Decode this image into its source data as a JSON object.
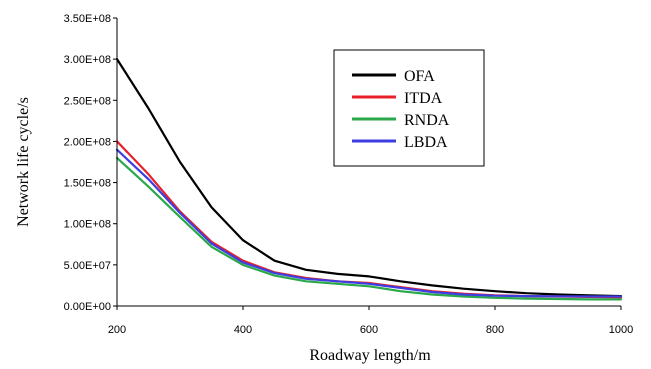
{
  "chart_data": {
    "type": "line",
    "title": "",
    "xlabel": "Roadway length/m",
    "ylabel": "Network life cycle/s",
    "xlim": [
      200,
      1000
    ],
    "ylim": [
      0,
      350000000
    ],
    "x_ticks": [
      200,
      400,
      600,
      800,
      1000
    ],
    "x_tick_labels": [
      "200",
      "400",
      "600",
      "800",
      "1000"
    ],
    "y_ticks": [
      0,
      50000000,
      100000000,
      150000000,
      200000000,
      250000000,
      300000000,
      350000000
    ],
    "y_tick_labels": [
      "0.00E+00",
      "5.00E+07",
      "1.00E+08",
      "1.50E+08",
      "2.00E+08",
      "2.50E+08",
      "3.00E+08",
      "3.50E+08"
    ],
    "grid": false,
    "legend_position": "top-right",
    "series": [
      {
        "name": "OFA",
        "color": "#000000",
        "x": [
          200,
          250,
          300,
          350,
          400,
          450,
          500,
          550,
          600,
          650,
          700,
          750,
          800,
          850,
          900,
          950,
          1000
        ],
        "y": [
          300000000,
          240000000,
          175000000,
          120000000,
          80000000,
          55000000,
          44000000,
          39000000,
          36000000,
          30000000,
          25000000,
          21000000,
          18000000,
          15500000,
          14000000,
          13000000,
          12000000
        ]
      },
      {
        "name": "ITDA",
        "color": "#e8202a",
        "x": [
          200,
          250,
          300,
          350,
          400,
          450,
          500,
          550,
          600,
          650,
          700,
          750,
          800,
          850,
          900,
          950,
          1000
        ],
        "y": [
          200000000,
          160000000,
          115000000,
          78000000,
          55000000,
          41000000,
          34000000,
          30000000,
          28000000,
          23000000,
          18000000,
          15000000,
          13000000,
          12000000,
          11500000,
          11000000,
          10500000
        ]
      },
      {
        "name": "RNDA",
        "color": "#2aa84a",
        "x": [
          200,
          250,
          300,
          350,
          400,
          450,
          500,
          550,
          600,
          650,
          700,
          750,
          800,
          850,
          900,
          950,
          1000
        ],
        "y": [
          180000000,
          145000000,
          108000000,
          72000000,
          50000000,
          37000000,
          30000000,
          27000000,
          24000000,
          18000000,
          14000000,
          11500000,
          10000000,
          9000000,
          8500000,
          8000000,
          8000000
        ]
      },
      {
        "name": "LBDA",
        "color": "#3d3de0",
        "x": [
          200,
          250,
          300,
          350,
          400,
          450,
          500,
          550,
          600,
          650,
          700,
          750,
          800,
          850,
          900,
          950,
          1000
        ],
        "y": [
          190000000,
          154000000,
          113000000,
          76000000,
          53000000,
          40000000,
          33000000,
          30000000,
          27000000,
          22000000,
          17000000,
          14000000,
          12500000,
          12000000,
          11800000,
          11500000,
          11500000
        ]
      }
    ]
  }
}
